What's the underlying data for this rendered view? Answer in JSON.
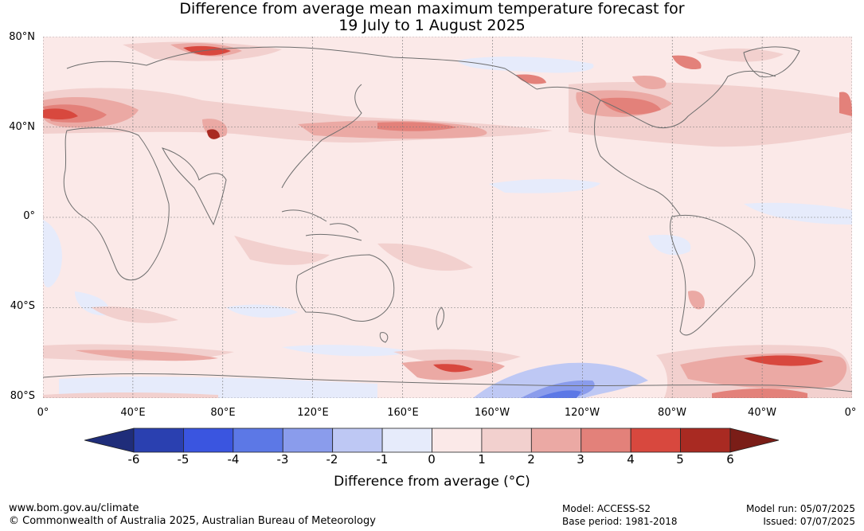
{
  "title": {
    "line1": "Difference from average mean maximum temperature forecast for",
    "line2": "19 July to 1 August 2025"
  },
  "lat_labels": [
    "80°N",
    "40°N",
    "0°",
    "40°S",
    "80°S"
  ],
  "lon_labels": [
    "0°",
    "40°E",
    "80°E",
    "120°E",
    "160°E",
    "160°W",
    "120°W",
    "80°W",
    "40°W",
    "0°"
  ],
  "colorbar": {
    "label": "Difference from average (°C)",
    "ticks": [
      "-6",
      "-5",
      "-4",
      "-3",
      "-2",
      "-1",
      "0",
      "1",
      "2",
      "3",
      "4",
      "5",
      "6"
    ],
    "colors": {
      "under": "#1f2d7a",
      "bins": [
        "#2a40b0",
        "#3a55e0",
        "#5c78e6",
        "#8a9cec",
        "#bec8f4",
        "#e6ebfb",
        "#fbe9e8",
        "#f2d0ce",
        "#eba9a4",
        "#e3817a",
        "#d8483e",
        "#a92a22"
      ],
      "over": "#7a1d17"
    }
  },
  "map_colors": {
    "land_outline": "#6e6e6e",
    "grid": "#777777",
    "base": "#fbe9e8"
  },
  "footer": {
    "website": "www.bom.gov.au/climate",
    "copyright": "© Commonwealth of Australia 2025, Australian Bureau of Meteorology",
    "model": "Model: ACCESS-S2",
    "base_period": "Base period: 1981-2018",
    "model_run": "Model run: 05/07/2025",
    "issued": "Issued: 07/07/2025"
  }
}
